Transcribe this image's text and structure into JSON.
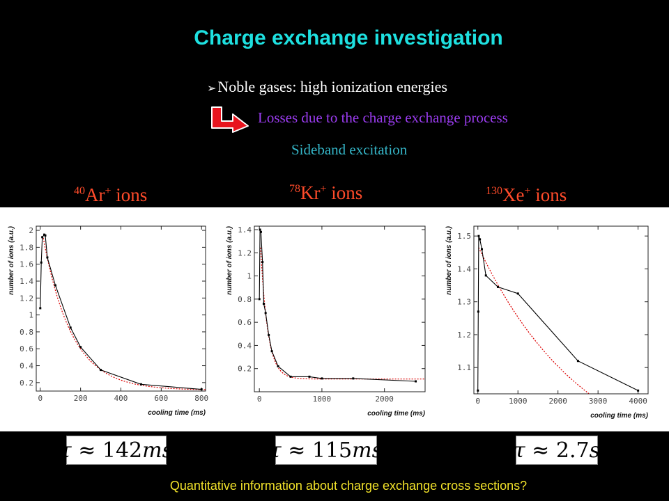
{
  "slide": {
    "title": "Charge exchange investigation",
    "bullet": "Noble gases: high ionization energies",
    "losses": "Losses due to the charge exchange process",
    "sideband": "Sideband excitation",
    "ions": [
      {
        "mass": "40",
        "symbol": "Ar",
        "charge": "+",
        "text": "ions"
      },
      {
        "mass": "78",
        "symbol": "Kr",
        "charge": "+",
        "text": "ions"
      },
      {
        "mass": "130",
        "symbol": "Xe",
        "charge": "+",
        "text": "ions"
      }
    ],
    "tau": [
      {
        "symbol": "τ",
        "approx": "≈",
        "value": "142",
        "unit": "ms"
      },
      {
        "symbol": "τ",
        "approx": "≈",
        "value": "115",
        "unit": "ms"
      },
      {
        "symbol": "τ",
        "approx": "≈",
        "value": "2.7",
        "unit": "s"
      }
    ],
    "question": "Quantitative information about charge exchange cross sections?",
    "colors": {
      "title": "#1ee0e0",
      "losses": "#9b3cf0",
      "sideband": "#35b6c8",
      "ionlabel": "#ff4b2a",
      "question": "#f2e22a",
      "fit": "#dd0000",
      "data": "#000000"
    }
  },
  "chart_data": [
    {
      "type": "line",
      "xlabel": "cooling time (ms)",
      "ylabel": "number of ions (a.u.)",
      "xlim": [
        -20,
        820
      ],
      "ylim": [
        0.1,
        2.05
      ],
      "xticks": [
        0,
        200,
        400,
        600,
        800
      ],
      "yticks": [
        0.2,
        0.4,
        0.6,
        0.8,
        1,
        1.2,
        1.4,
        1.6,
        1.8,
        2
      ],
      "ytick_labels": [
        "0.2",
        "0.4",
        "0.6",
        "0.8",
        "1",
        "1.2",
        "1.4",
        "1.6",
        "1.8",
        "2"
      ],
      "series": [
        {
          "x": [
            0,
            5,
            10,
            20,
            25,
            35,
            75,
            150,
            200,
            300,
            500,
            800
          ],
          "y": [
            1.08,
            1.62,
            1.92,
            1.95,
            1.94,
            1.68,
            1.35,
            0.85,
            0.62,
            0.35,
            0.18,
            0.12
          ]
        }
      ],
      "fit": {
        "model": "a*exp(-x/tau)+c",
        "a": 2.0,
        "tau": 142,
        "c": 0.11,
        "x_start": 15
      }
    },
    {
      "type": "line",
      "xlabel": "cooling time (ms)",
      "ylabel": "number of ions (a.u.)",
      "xlim": [
        -80,
        2650
      ],
      "ylim": [
        0,
        1.43
      ],
      "xticks": [
        0,
        1000,
        2000
      ],
      "yticks": [
        0.2,
        0.4,
        0.6,
        0.8,
        1,
        1.2,
        1.4
      ],
      "ytick_labels": [
        "0.2",
        "0.4",
        "0.6",
        "0.8",
        "1",
        "1.2",
        "1.4"
      ],
      "series": [
        {
          "x": [
            0,
            10,
            25,
            50,
            70,
            100,
            150,
            200,
            300,
            500,
            800,
            1000,
            1500,
            2500
          ],
          "y": [
            0.8,
            1.4,
            1.38,
            1.12,
            0.76,
            0.68,
            0.49,
            0.35,
            0.22,
            0.13,
            0.13,
            0.115,
            0.115,
            0.09
          ]
        }
      ],
      "fit": {
        "model": "a*exp(-x/tau)+c",
        "a": 1.35,
        "tau": 115,
        "c": 0.11,
        "x_start": 20
      }
    },
    {
      "type": "line",
      "xlabel": "cooling time (ms)",
      "ylabel": "number of ions (a.u.)",
      "xlim": [
        -100,
        4250
      ],
      "ylim": [
        1.02,
        1.53
      ],
      "xticks": [
        0,
        1000,
        2000,
        3000,
        4000
      ],
      "yticks": [
        1.1,
        1.2,
        1.3,
        1.4,
        1.5
      ],
      "ytick_labels": [
        "1.1",
        "1.2",
        "1.3",
        "1.4",
        "1.5"
      ],
      "series": [
        {
          "x": [
            0,
            10,
            20,
            50,
            100,
            200,
            500,
            1000,
            2500,
            4000
          ],
          "y": [
            1.03,
            1.27,
            1.5,
            1.49,
            1.46,
            1.38,
            1.345,
            1.325,
            1.12,
            1.03
          ]
        }
      ],
      "fit": {
        "model": "a*exp(-x/tau)+c",
        "a": 0.7,
        "tau": 2700,
        "c": 0.77,
        "x_start": 20
      }
    }
  ]
}
